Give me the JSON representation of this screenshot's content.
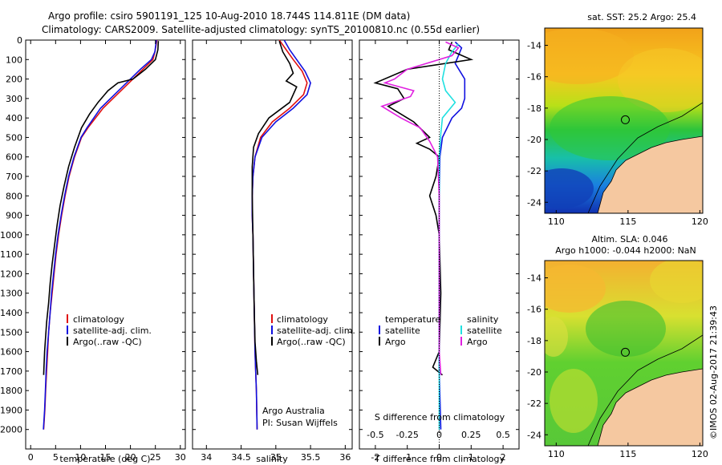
{
  "title": {
    "line1": "Argo profile: csiro 5901191_125 10-Aug-2010 18.744S 114.811E (DM data)",
    "line2": "Climatology: CARS2009. Satellite-adjusted climatology: synTS_20100810.nc (0.55d earlier)"
  },
  "colors": {
    "climatology": "#e01010",
    "satellite": "#1010e0",
    "argo": "#000000",
    "argo_salinity_diff": "#e020e0",
    "satellite_salinity_diff": "#20e0e0",
    "land": "#f5c8a0"
  },
  "chart_data": [
    {
      "id": "temperature",
      "type": "line",
      "xlabel": "temperature (deg C)",
      "ylabel": "",
      "xlim": [
        -1,
        31
      ],
      "ylim": [
        2100,
        0
      ],
      "xticks": [
        0,
        5,
        10,
        15,
        20,
        25,
        30
      ],
      "yticks": [
        0,
        100,
        200,
        300,
        400,
        500,
        600,
        700,
        800,
        900,
        1000,
        1100,
        1200,
        1300,
        1400,
        1500,
        1600,
        1700,
        1800,
        1900,
        2000
      ],
      "legend": [
        "climatology",
        "satellite-adj. clim.",
        "Argo(..raw -QC)"
      ],
      "series": [
        {
          "name": "climatology",
          "color": "#e01010",
          "x": [
            25.3,
            24.9,
            24.5,
            22.5,
            18.5,
            14.5,
            11.5,
            10.2,
            8.8,
            7.7,
            6.9,
            6.2,
            5.6,
            5.1,
            4.7,
            4.3,
            3.9,
            3.6,
            3.4,
            3.2,
            3.0,
            2.85,
            2.6
          ],
          "y": [
            0,
            60,
            100,
            150,
            250,
            350,
            450,
            500,
            600,
            700,
            800,
            900,
            1000,
            1100,
            1200,
            1300,
            1400,
            1500,
            1600,
            1700,
            1800,
            1900,
            2000
          ]
        },
        {
          "name": "satellite-adj. clim.",
          "color": "#1010e0",
          "x": [
            25.2,
            24.9,
            24.2,
            22.0,
            18.0,
            14.0,
            11.3,
            10.1,
            8.7,
            7.6,
            6.8,
            6.1,
            5.5,
            5.0,
            4.6,
            4.2,
            3.9,
            3.6,
            3.3,
            3.1,
            2.95,
            2.8,
            2.55
          ],
          "y": [
            0,
            60,
            100,
            150,
            250,
            350,
            450,
            500,
            600,
            700,
            800,
            900,
            1000,
            1100,
            1200,
            1300,
            1400,
            1500,
            1600,
            1700,
            1800,
            1900,
            2000
          ]
        },
        {
          "name": "Argo(..raw -QC)",
          "color": "#000000",
          "x": [
            25.6,
            25.5,
            25.0,
            23.0,
            20.5,
            17.5,
            15.5,
            13.5,
            11.8,
            10.2,
            8.8,
            7.6,
            6.7,
            5.9,
            5.3,
            4.8,
            4.3,
            3.9,
            3.6,
            3.2,
            2.8,
            2.6
          ],
          "y": [
            5,
            50,
            100,
            150,
            200,
            220,
            260,
            320,
            380,
            450,
            550,
            650,
            750,
            850,
            950,
            1050,
            1150,
            1250,
            1350,
            1450,
            1600,
            1720
          ]
        }
      ]
    },
    {
      "id": "salinity",
      "type": "line",
      "xlabel": "salinity",
      "ylabel": "",
      "xlim": [
        33.8,
        36.1
      ],
      "ylim": [
        2100,
        0
      ],
      "xticks": [
        34,
        34.5,
        35,
        35.5,
        36
      ],
      "legend": [
        "climatology",
        "satellite-adj. clim.",
        "Argo(..raw -QC)"
      ],
      "annotation": [
        "Argo Australia",
        "PI: Susan Wijffels"
      ],
      "series": [
        {
          "name": "climatology",
          "color": "#e01010",
          "x": [
            35.05,
            35.15,
            35.25,
            35.38,
            35.45,
            35.4,
            35.2,
            34.95,
            34.78,
            34.7,
            34.67,
            34.66,
            34.66,
            34.67,
            34.68,
            34.69,
            34.7,
            34.71,
            34.72,
            34.73
          ],
          "y": [
            0,
            50,
            100,
            160,
            220,
            280,
            350,
            420,
            500,
            600,
            700,
            800,
            900,
            1000,
            1200,
            1400,
            1600,
            1700,
            1800,
            2000
          ]
        },
        {
          "name": "satellite-adj. clim.",
          "color": "#1010e0",
          "x": [
            35.12,
            35.2,
            35.3,
            35.42,
            35.5,
            35.45,
            35.25,
            35.0,
            34.8,
            34.7,
            34.67,
            34.66,
            34.66,
            34.67,
            34.68,
            34.69,
            34.7,
            34.71,
            34.72,
            34.73
          ],
          "y": [
            0,
            50,
            100,
            160,
            220,
            280,
            350,
            420,
            500,
            600,
            700,
            800,
            900,
            1000,
            1200,
            1400,
            1600,
            1700,
            1800,
            2000
          ]
        },
        {
          "name": "Argo(..raw -QC)",
          "color": "#000000",
          "x": [
            35.05,
            35.1,
            35.2,
            35.25,
            35.15,
            35.3,
            35.2,
            34.9,
            34.75,
            34.68,
            34.66,
            34.66,
            34.67,
            34.68,
            34.69,
            34.7,
            34.72,
            34.74
          ],
          "y": [
            5,
            60,
            120,
            170,
            210,
            240,
            320,
            400,
            480,
            550,
            650,
            800,
            1000,
            1200,
            1400,
            1550,
            1650,
            1720
          ]
        }
      ]
    },
    {
      "id": "difference",
      "type": "line",
      "xlabel": "T difference from climatology",
      "xlabel_top": "S difference from climatology",
      "xlim": [
        -2.5,
        2.5
      ],
      "ylim": [
        2100,
        0
      ],
      "xticks": [
        -2,
        -1,
        0,
        1,
        2
      ],
      "s_ticks": [
        "-0.5",
        "-0.25",
        "0",
        "0.25",
        "0.5"
      ],
      "legend": {
        "temperature": [
          "temperature",
          "satellite",
          "Argo"
        ],
        "salinity": [
          "salinity",
          "satellite",
          "Argo"
        ]
      },
      "series": [
        {
          "name": "T satellite",
          "color": "#1010e0",
          "x": [
            0.5,
            0.7,
            0.6,
            0.5,
            0.8,
            0.8,
            0.7,
            0.4,
            0.1,
            0.02,
            0.0,
            0.0,
            0.0,
            0.0,
            0.05
          ],
          "y": [
            10,
            40,
            80,
            120,
            200,
            300,
            350,
            400,
            500,
            600,
            800,
            1000,
            1400,
            1700,
            2000
          ]
        },
        {
          "name": "T Argo",
          "color": "#000000",
          "x": [
            0.4,
            0.3,
            1.0,
            -1.0,
            -2.0,
            -1.3,
            -1.1,
            -1.6,
            -0.8,
            -0.3,
            -0.7,
            -0.3,
            0.0,
            -0.1,
            -0.3,
            -0.1,
            0.0,
            0.05,
            0.0,
            -0.2,
            0.1
          ],
          "y": [
            10,
            50,
            100,
            150,
            220,
            250,
            300,
            340,
            420,
            500,
            530,
            560,
            600,
            700,
            800,
            900,
            1000,
            1300,
            1600,
            1680,
            1720
          ]
        },
        {
          "name": "S satellite",
          "color": "#20e0e0",
          "x": [
            0.6,
            0.4,
            0.2,
            0.1,
            0.2,
            0.5,
            0.1,
            0.05,
            0.0,
            0.0,
            0.0,
            0.0,
            0.0
          ],
          "y": [
            20,
            60,
            120,
            200,
            260,
            320,
            400,
            480,
            600,
            900,
            1300,
            1700,
            2000
          ]
        },
        {
          "name": "S Argo",
          "color": "#e020e0",
          "x": [
            0.2,
            0.6,
            0.4,
            -1.0,
            -1.4,
            -1.7,
            -0.8,
            -0.9,
            -1.8,
            -1.2,
            -0.6,
            -0.3,
            -0.05,
            0.0,
            0.0,
            0.0,
            0.05
          ],
          "y": [
            10,
            40,
            80,
            150,
            200,
            220,
            260,
            290,
            340,
            400,
            450,
            520,
            600,
            800,
            1200,
            1600,
            1720
          ]
        }
      ]
    },
    {
      "id": "map_sst",
      "type": "heatmap",
      "title": "sat. SST: 25.2 Argo: 25.4",
      "xlim": [
        109.2,
        120.2
      ],
      "ylim": [
        -24.7,
        -12.9
      ],
      "xticks": [
        110,
        115,
        120
      ],
      "yticks": [
        -14,
        -16,
        -18,
        -20,
        -22,
        -24
      ],
      "marker": {
        "lon": 114.811,
        "lat": -18.744
      }
    },
    {
      "id": "map_sla",
      "type": "heatmap",
      "title": [
        "Altim. SLA: 0.046",
        "Argo h1000: -0.044 h2000: NaN"
      ],
      "xlim": [
        109.2,
        120.2
      ],
      "ylim": [
        -24.7,
        -12.9
      ],
      "xticks": [
        110,
        115,
        120
      ],
      "yticks": [
        -14,
        -16,
        -18,
        -20,
        -22,
        -24
      ],
      "marker": {
        "lon": 114.811,
        "lat": -18.744
      }
    }
  ],
  "side_stamp": "©IMOS 02-Aug-2017 21:39:43"
}
